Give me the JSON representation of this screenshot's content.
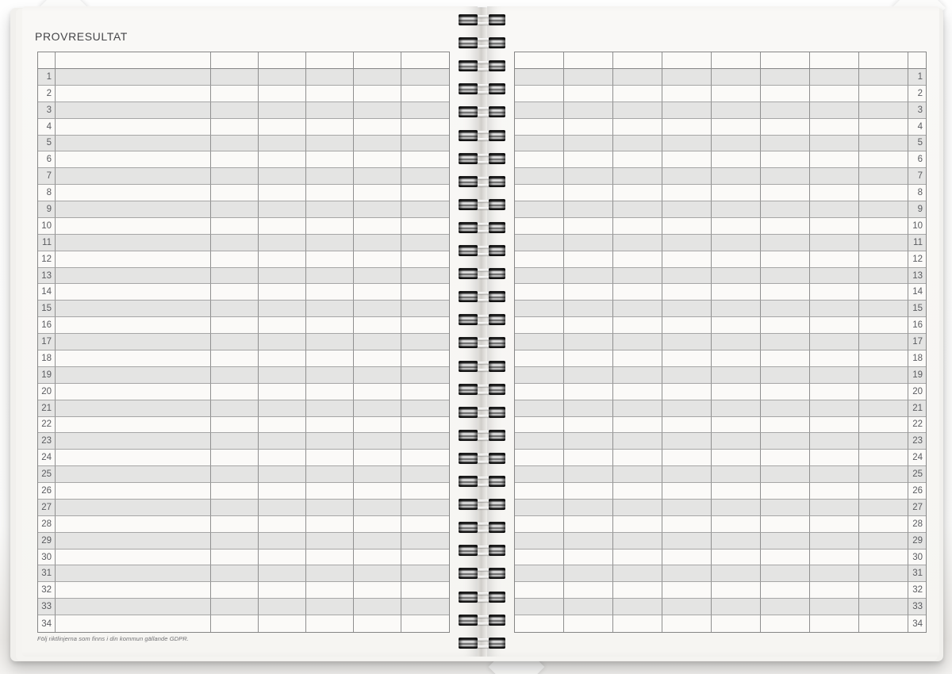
{
  "page": {
    "title": "PROVRESULTAT",
    "footer_note": "Följ riktlinjerna som finns i din kommun gällande GDPR."
  },
  "tables": {
    "row_numbers": [
      1,
      2,
      3,
      4,
      5,
      6,
      7,
      8,
      9,
      10,
      11,
      12,
      13,
      14,
      15,
      16,
      17,
      18,
      19,
      20,
      21,
      22,
      23,
      24,
      25,
      26,
      27,
      28,
      29,
      30,
      31,
      32,
      33,
      34
    ],
    "left": {
      "data_columns": 5,
      "has_wide_name_column": true,
      "number_column_side": "left",
      "cells_empty": true
    },
    "right": {
      "data_columns": 8,
      "has_wide_name_column": false,
      "number_column_side": "right",
      "cells_empty": true
    }
  },
  "binding": {
    "coil_count": 28
  },
  "colors": {
    "paper": "#f8f7f4",
    "row_stripe": "#e4e4e3",
    "grid_line": "#8f8f8f",
    "title_text": "#454548",
    "number_text": "#5a5b5f"
  }
}
